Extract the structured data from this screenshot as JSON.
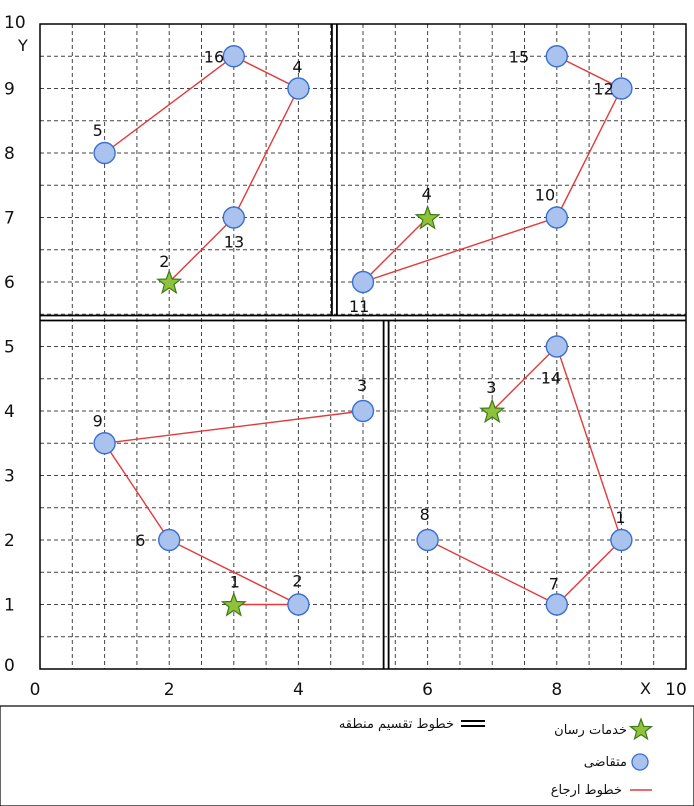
{
  "chart_data": {
    "type": "scatter",
    "xlim": [
      0,
      10
    ],
    "ylim": [
      0,
      10
    ],
    "x_ticks": [
      "0",
      "2",
      "4",
      "6",
      "8",
      "10"
    ],
    "y_ticks": [
      "0",
      "1",
      "2",
      "3",
      "4",
      "5",
      "6",
      "7",
      "8",
      "9",
      "10"
    ],
    "xlabel": "X",
    "ylabel": "Y",
    "grid": "dashed, step 0.5",
    "colors": {
      "route": "#e23a3a",
      "customer_fill": "#a9c3ee",
      "customer_stroke": "#3a6fd0",
      "service_fill": "#8fc23a",
      "service_stroke": "#3d7a1a",
      "divider": "#000000"
    },
    "dividers": {
      "horizontal_y": 5.45,
      "upper_vertical_x": 4.55,
      "lower_vertical_x": 5.35
    },
    "customers": [
      {
        "label": "16",
        "x": 3,
        "y": 9.5
      },
      {
        "label": "4",
        "x": 4,
        "y": 9
      },
      {
        "label": "5",
        "x": 1,
        "y": 8
      },
      {
        "label": "13",
        "x": 3,
        "y": 7
      },
      {
        "label": "15",
        "x": 8,
        "y": 9.5
      },
      {
        "label": "12",
        "x": 9,
        "y": 9
      },
      {
        "label": "10",
        "x": 8,
        "y": 7
      },
      {
        "label": "11",
        "x": 5,
        "y": 6
      },
      {
        "label": "3",
        "x": 5,
        "y": 4
      },
      {
        "label": "9",
        "x": 1,
        "y": 3.5
      },
      {
        "label": "6",
        "x": 2,
        "y": 2
      },
      {
        "label": "2",
        "x": 4,
        "y": 1
      },
      {
        "label": "14",
        "x": 8,
        "y": 5
      },
      {
        "label": "8",
        "x": 6,
        "y": 2
      },
      {
        "label": "1",
        "x": 9,
        "y": 2
      },
      {
        "label": "7",
        "x": 8,
        "y": 1
      }
    ],
    "service_providers": [
      {
        "label": "2",
        "x": 2,
        "y": 6
      },
      {
        "label": "4",
        "x": 6,
        "y": 7
      },
      {
        "label": "3",
        "x": 7,
        "y": 4
      },
      {
        "label": "1",
        "x": 3,
        "y": 1
      }
    ],
    "routes": [
      [
        [
          1,
          8
        ],
        [
          3,
          9.5
        ],
        [
          4,
          9
        ],
        [
          3,
          7
        ],
        [
          2,
          6
        ]
      ],
      [
        [
          8,
          9.5
        ],
        [
          9,
          9
        ],
        [
          8,
          7
        ],
        [
          5,
          6
        ],
        [
          6,
          7
        ]
      ],
      [
        [
          5,
          4
        ],
        [
          1,
          3.5
        ],
        [
          2,
          2
        ],
        [
          4,
          1
        ],
        [
          3,
          1
        ]
      ],
      [
        [
          7,
          4
        ],
        [
          8,
          5
        ],
        [
          9,
          2
        ],
        [
          8,
          1
        ],
        [
          6,
          2
        ]
      ]
    ],
    "legend": {
      "service": "خدمات رسان",
      "customer": "متقاضی",
      "route": "خطوط ارجاع",
      "divider": "خطوط تقسیم منطقه"
    }
  }
}
